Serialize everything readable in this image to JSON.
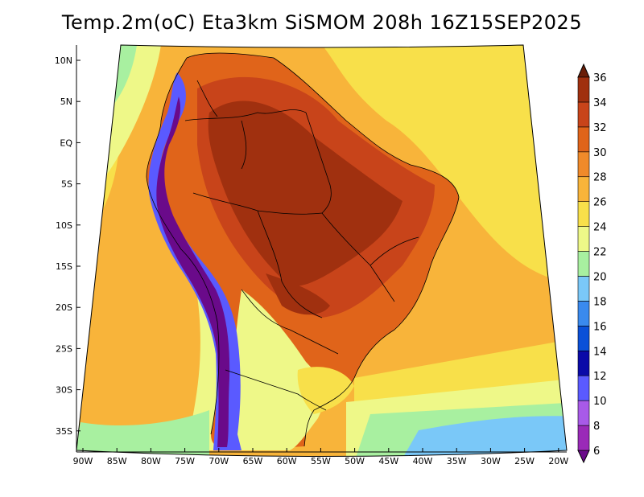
{
  "title": "Temp.2m(oC) Eta3km SiSMOM 208h 16Z15SEP2025",
  "lat_labels": [
    "10N",
    "5N",
    "EQ",
    "5S",
    "10S",
    "15S",
    "20S",
    "25S",
    "30S",
    "35S"
  ],
  "lon_labels": [
    "90W",
    "85W",
    "80W",
    "75W",
    "70W",
    "65W",
    "60W",
    "55W",
    "50W",
    "45W",
    "40W",
    "35W",
    "30W",
    "25W",
    "20W"
  ],
  "colorbar": {
    "levels": [
      "6",
      "8",
      "10",
      "12",
      "14",
      "16",
      "18",
      "20",
      "22",
      "24",
      "26",
      "28",
      "30",
      "32",
      "34",
      "36"
    ],
    "colors": [
      "#6a0a8a",
      "#9a2ab8",
      "#a85ae8",
      "#5a5aff",
      "#0a0aa8",
      "#0a50d8",
      "#3a8aee",
      "#7ac8f8",
      "#a8f0a0",
      "#eef888",
      "#f8e04a",
      "#f8b43a",
      "#f08a2a",
      "#e0641a",
      "#c8441a",
      "#a0300f",
      "#6a1e08"
    ]
  },
  "palette": {
    "ocean_warm": "#f8b43a",
    "ocean_mild": "#f8e04a",
    "ocean_cool": "#eef888",
    "ocean_cold": "#a8f0a0",
    "land_hot": "#e0641a",
    "land_hotter": "#c8441a",
    "land_hottest": "#a0300f",
    "andes_cold": "#5a5aff",
    "andes_coldest": "#6a0a8a"
  }
}
